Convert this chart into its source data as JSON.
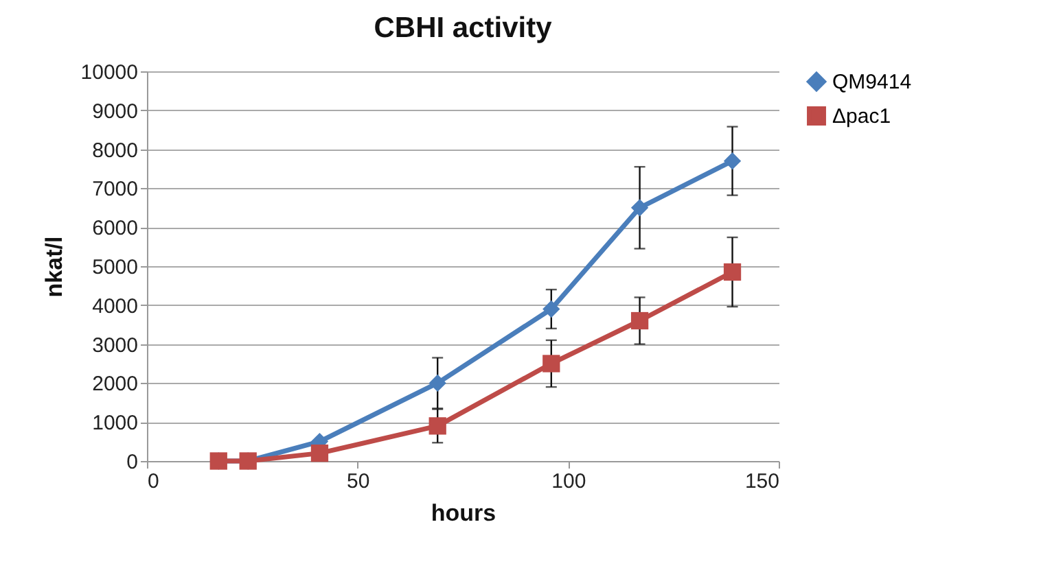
{
  "chart_data": {
    "type": "line",
    "title": "CBHI activity",
    "xlabel": "hours",
    "ylabel": "nkat/l",
    "x": [
      17,
      24,
      41,
      69,
      96,
      117,
      139
    ],
    "series": [
      {
        "name": "QM9414",
        "color": "#4a7ebb",
        "marker": "diamond",
        "values": [
          0,
          0,
          500,
          2000,
          3900,
          6500,
          7700
        ],
        "errors": [
          null,
          null,
          null,
          650,
          500,
          1050,
          880
        ]
      },
      {
        "name": "Δpac1",
        "color": "#be4b48",
        "marker": "square",
        "values": [
          0,
          0,
          200,
          900,
          2500,
          3600,
          4850
        ],
        "errors": [
          null,
          null,
          null,
          430,
          600,
          600,
          890
        ]
      }
    ],
    "xlim": [
      0,
      150
    ],
    "xticks": [
      0,
      50,
      100,
      150
    ],
    "ylim": [
      0,
      10000
    ],
    "yticks": [
      0,
      1000,
      2000,
      3000,
      4000,
      5000,
      6000,
      7000,
      8000,
      9000,
      10000
    ],
    "grid": "y",
    "legend": "right"
  }
}
